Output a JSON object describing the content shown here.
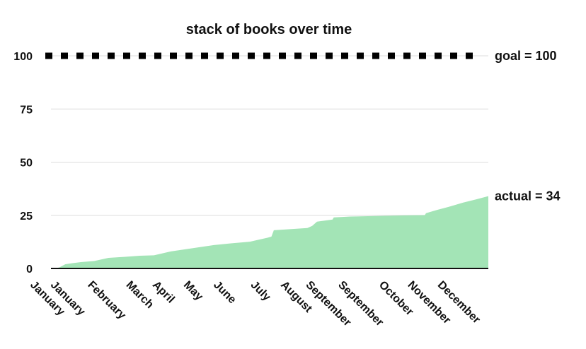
{
  "chart_data": {
    "type": "area",
    "title": "stack of books over time",
    "xlabel": "",
    "ylabel": "",
    "ylim": [
      0,
      100
    ],
    "yticks": [
      0,
      25,
      50,
      75,
      100
    ],
    "grid": true,
    "xlim": [
      0,
      365
    ],
    "x_tick_labels": [
      {
        "pos": 0,
        "label": "January"
      },
      {
        "pos": 17,
        "label": "January"
      },
      {
        "pos": 48,
        "label": "February"
      },
      {
        "pos": 80,
        "label": "March"
      },
      {
        "pos": 102,
        "label": "April"
      },
      {
        "pos": 128,
        "label": "May"
      },
      {
        "pos": 153,
        "label": "June"
      },
      {
        "pos": 184,
        "label": "July"
      },
      {
        "pos": 209,
        "label": "August"
      },
      {
        "pos": 230,
        "label": "September"
      },
      {
        "pos": 257,
        "label": "September"
      },
      {
        "pos": 291,
        "label": "October"
      },
      {
        "pos": 315,
        "label": "November"
      },
      {
        "pos": 340,
        "label": "December"
      }
    ],
    "series": [
      {
        "type": "area",
        "color": "#a3e4b6",
        "x": [
          0,
          3,
          7,
          12,
          18,
          25,
          36,
          48,
          62,
          74,
          86,
          100,
          112,
          124,
          136,
          150,
          166,
          181,
          184,
          186,
          214,
          218,
          222,
          235,
          236,
          250,
          275,
          300,
          312,
          313,
          322,
          332,
          344,
          355,
          365
        ],
        "values": [
          0,
          0,
          0.5,
          2,
          2.5,
          3,
          3.5,
          5,
          5.5,
          6,
          6.2,
          8,
          9,
          10,
          11,
          11.8,
          12.6,
          14.5,
          15,
          18,
          19,
          20,
          22,
          23,
          24,
          24.4,
          24.7,
          25,
          25.1,
          26,
          27.5,
          29,
          31,
          32.5,
          34
        ]
      },
      {
        "type": "line",
        "style": "dotted",
        "color": "#000000",
        "x": [
          0,
          365
        ],
        "values": [
          100,
          100
        ]
      }
    ],
    "annotations": [
      {
        "text": "goal = 100",
        "y": 100
      },
      {
        "text": "actual = 34",
        "y": 34
      }
    ]
  }
}
